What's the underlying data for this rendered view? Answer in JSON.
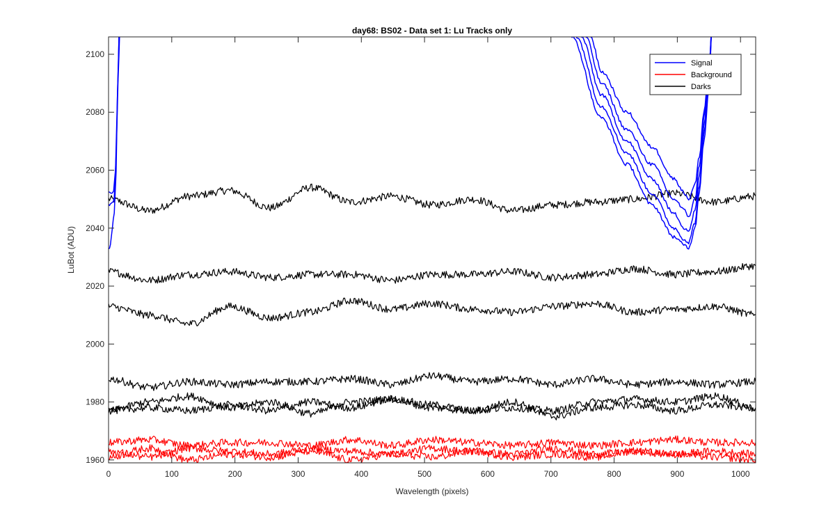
{
  "chart_data": {
    "type": "line",
    "title": "day68: BS02 - Data set 1: Lu Tracks only",
    "xlabel": "Wavelength (pixels)",
    "ylabel": "LuBot (ADU)",
    "xlim": [
      0,
      1024
    ],
    "ylim": [
      1959,
      2106
    ],
    "xticks": [
      0,
      100,
      200,
      300,
      400,
      500,
      600,
      700,
      800,
      900,
      1000
    ],
    "yticks": [
      1960,
      1980,
      2000,
      2020,
      2040,
      2060,
      2080,
      2100
    ],
    "grid": false,
    "legend": {
      "location": "top-right",
      "entries": [
        {
          "label": "Signal",
          "color": "#0000ff"
        },
        {
          "label": "Background",
          "color": "#ff0000"
        },
        {
          "label": "Darks",
          "color": "#000000"
        }
      ]
    },
    "series": [
      {
        "group": "Darks",
        "color": "#000000",
        "x": [
          0,
          64,
          128,
          192,
          256,
          320,
          384,
          448,
          512,
          576,
          640,
          704,
          768,
          832,
          896,
          960,
          1024
        ],
        "y": [
          2050,
          2046,
          2051,
          2053,
          2047,
          2054,
          2049,
          2051,
          2048,
          2050,
          2046,
          2048,
          2049,
          2050,
          2052,
          2049,
          2051
        ]
      },
      {
        "group": "Darks",
        "color": "#000000",
        "x": [
          0,
          64,
          128,
          192,
          256,
          320,
          384,
          448,
          512,
          576,
          640,
          704,
          768,
          832,
          896,
          960,
          1024
        ],
        "y": [
          2025,
          2022,
          2024,
          2025,
          2023,
          2024,
          2024,
          2022,
          2024,
          2024,
          2025,
          2023,
          2024,
          2026,
          2024,
          2025,
          2027
        ]
      },
      {
        "group": "Darks",
        "color": "#000000",
        "x": [
          0,
          64,
          128,
          192,
          256,
          320,
          384,
          448,
          512,
          576,
          640,
          704,
          768,
          832,
          896,
          960,
          1024
        ],
        "y": [
          2013,
          2010,
          2007,
          2013,
          2009,
          2011,
          2015,
          2012,
          2014,
          2012,
          2011,
          2013,
          2014,
          2011,
          2012,
          2013,
          2010
        ]
      },
      {
        "group": "Darks",
        "color": "#000000",
        "x": [
          0,
          64,
          128,
          192,
          256,
          320,
          384,
          448,
          512,
          576,
          640,
          704,
          768,
          832,
          896,
          960,
          1024
        ],
        "y": [
          1988,
          1985,
          1987,
          1986,
          1987,
          1987,
          1988,
          1986,
          1989,
          1987,
          1988,
          1986,
          1988,
          1986,
          1987,
          1986,
          1987
        ]
      },
      {
        "group": "Darks",
        "color": "#000000",
        "x": [
          0,
          64,
          128,
          192,
          256,
          320,
          384,
          448,
          512,
          576,
          640,
          704,
          768,
          832,
          896,
          960,
          1024
        ],
        "y": [
          1977,
          1980,
          1982,
          1978,
          1980,
          1976,
          1980,
          1981,
          1979,
          1977,
          1980,
          1975,
          1978,
          1979,
          1977,
          1979,
          1978
        ]
      },
      {
        "group": "Darks",
        "color": "#000000",
        "x": [
          0,
          64,
          128,
          192,
          256,
          320,
          384,
          448,
          512,
          576,
          640,
          704,
          768,
          832,
          896,
          960,
          1024
        ],
        "y": [
          1977,
          1978,
          1977,
          1979,
          1977,
          1980,
          1978,
          1981,
          1978,
          1977,
          1978,
          1977,
          1980,
          1981,
          1980,
          1982,
          1978
        ]
      },
      {
        "group": "Background",
        "color": "#ff0000",
        "x": [
          0,
          64,
          128,
          192,
          256,
          320,
          384,
          448,
          512,
          576,
          640,
          704,
          768,
          832,
          896,
          960,
          1024
        ],
        "y": [
          1966,
          1967,
          1965,
          1966,
          1966,
          1965,
          1967,
          1965,
          1967,
          1966,
          1965,
          1966,
          1965,
          1966,
          1967,
          1966,
          1966
        ]
      },
      {
        "group": "Background",
        "color": "#ff0000",
        "x": [
          0,
          64,
          128,
          192,
          256,
          320,
          384,
          448,
          512,
          576,
          640,
          704,
          768,
          832,
          896,
          960,
          1024
        ],
        "y": [
          1963,
          1961,
          1964,
          1963,
          1962,
          1964,
          1963,
          1962,
          1964,
          1963,
          1962,
          1964,
          1962,
          1963,
          1962,
          1963,
          1962
        ]
      },
      {
        "group": "Background",
        "color": "#ff0000",
        "x": [
          0,
          64,
          128,
          192,
          256,
          320,
          384,
          448,
          512,
          576,
          640,
          704,
          768,
          832,
          896,
          960,
          1024
        ],
        "y": [
          1961,
          1964,
          1960,
          1962,
          1961,
          1963,
          1960,
          1962,
          1961,
          1963,
          1961,
          1962,
          1961,
          1963,
          1962,
          1961,
          1960
        ]
      },
      {
        "group": "Signal",
        "color": "#0000ff",
        "x": [
          0,
          3,
          6,
          9,
          12,
          14,
          17
        ],
        "y": [
          2033,
          2034,
          2040,
          2045,
          2060,
          2085,
          2110
        ]
      },
      {
        "group": "Signal",
        "color": "#0000ff",
        "x": [
          0,
          3,
          6,
          9,
          12,
          15,
          18
        ],
        "y": [
          2048,
          2048,
          2049,
          2050,
          2065,
          2090,
          2110
        ]
      },
      {
        "group": "Signal",
        "color": "#0000ff",
        "x": [
          0,
          4,
          8,
          11,
          14,
          17
        ],
        "y": [
          2052,
          2052,
          2053,
          2060,
          2085,
          2110
        ]
      },
      {
        "group": "Signal",
        "color": "#0000ff",
        "x": [
          763,
          780,
          820,
          860,
          895,
          912,
          918,
          928,
          935,
          942,
          950,
          955,
          958
        ],
        "y": [
          2106,
          2094,
          2080,
          2068,
          2057,
          2052,
          2050,
          2055,
          2065,
          2080,
          2095,
          2110,
          2110
        ]
      },
      {
        "group": "Signal",
        "color": "#0000ff",
        "x": [
          755,
          780,
          820,
          860,
          895,
          912,
          918,
          928,
          935,
          942,
          950,
          955,
          958
        ],
        "y": [
          2106,
          2090,
          2074,
          2062,
          2050,
          2046,
          2044,
          2050,
          2062,
          2078,
          2094,
          2110,
          2110
        ]
      },
      {
        "group": "Signal",
        "color": "#0000ff",
        "x": [
          748,
          780,
          820,
          860,
          895,
          912,
          918,
          928,
          935,
          942,
          950,
          955,
          958
        ],
        "y": [
          2106,
          2086,
          2070,
          2057,
          2045,
          2040,
          2039,
          2046,
          2058,
          2075,
          2092,
          2110,
          2110
        ]
      },
      {
        "group": "Signal",
        "color": "#0000ff",
        "x": [
          740,
          780,
          820,
          860,
          895,
          912,
          918,
          928,
          935,
          942,
          950,
          955,
          958
        ],
        "y": [
          2106,
          2082,
          2066,
          2052,
          2040,
          2036,
          2035,
          2042,
          2055,
          2072,
          2090,
          2110,
          2110
        ]
      },
      {
        "group": "Signal",
        "color": "#0000ff",
        "x": [
          733,
          780,
          820,
          860,
          895,
          912,
          918,
          928,
          935,
          942,
          950,
          955,
          958
        ],
        "y": [
          2106,
          2078,
          2062,
          2048,
          2037,
          2034,
          2033,
          2040,
          2053,
          2070,
          2088,
          2110,
          2110
        ]
      }
    ]
  }
}
